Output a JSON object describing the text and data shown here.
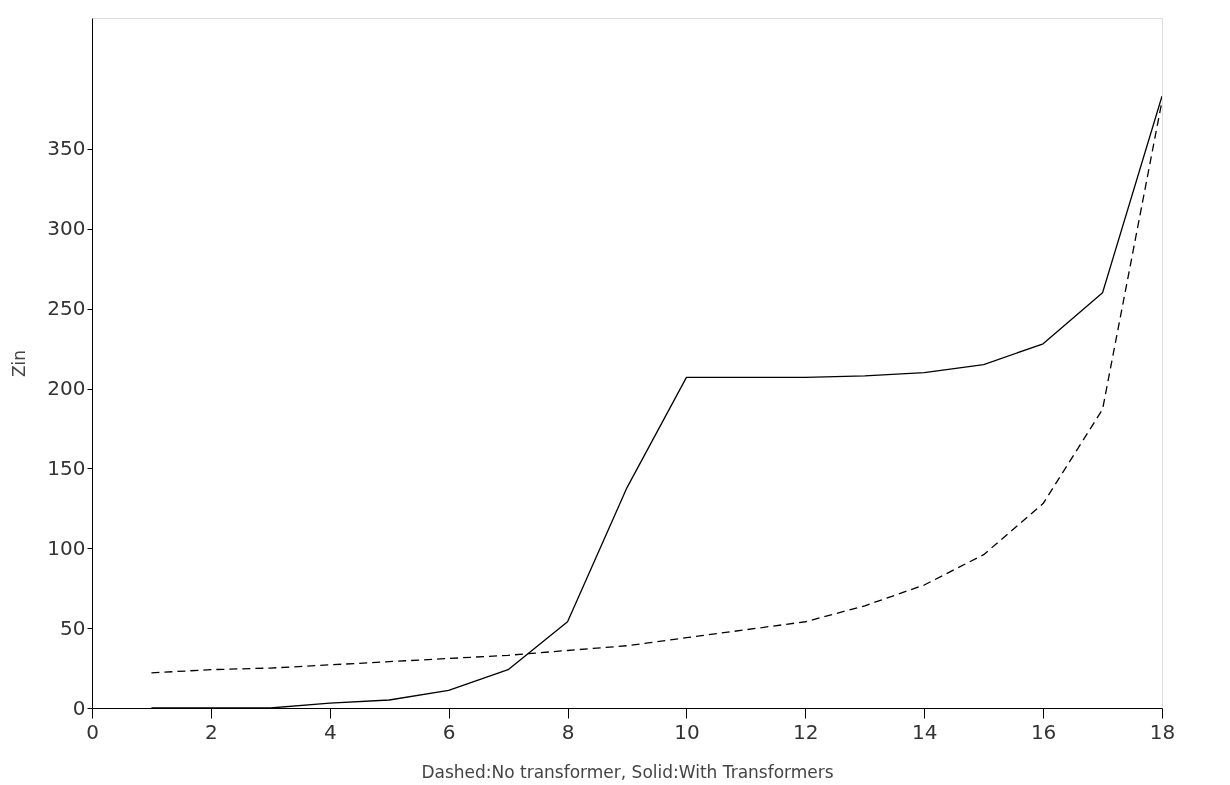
{
  "chart_data": {
    "type": "line",
    "xlabel": "Dashed:No transformer, Solid:With Transformers",
    "ylabel": "Zin",
    "x": [
      1,
      2,
      3,
      4,
      5,
      6,
      7,
      8,
      9,
      10,
      11,
      12,
      13,
      14,
      15,
      16,
      17,
      18
    ],
    "series": [
      {
        "color": "#000000",
        "line_style": "solid",
        "values": [
          0,
          0,
          0,
          3,
          5,
          11,
          24,
          54,
          138,
          207,
          207,
          207,
          208,
          210,
          215,
          228,
          260,
          383
        ]
      },
      {
        "color": "#000000",
        "line_style": "dashed",
        "values": [
          22,
          24,
          25,
          27,
          29,
          31,
          33,
          36,
          39,
          44,
          49,
          54,
          64,
          77,
          96,
          128,
          187,
          380
        ]
      }
    ],
    "xlim": [
      0,
      18
    ],
    "xticks": [
      0,
      2,
      4,
      6,
      8,
      10,
      12,
      14,
      16,
      18
    ],
    "ylim": [
      0,
      432
    ],
    "yticks": [
      0,
      50,
      100,
      150,
      200,
      250,
      300,
      350
    ],
    "grid": false,
    "marker": "none"
  }
}
